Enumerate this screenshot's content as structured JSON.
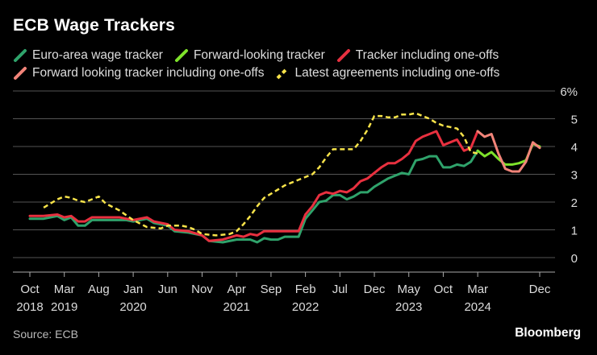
{
  "title": "ECB Wage Trackers",
  "source": "Source: ECB",
  "brand": "Bloomberg",
  "colors": {
    "background": "#000000",
    "grid": "#555555",
    "text": "#dddddd"
  },
  "chart_data": {
    "type": "line",
    "title": "ECB Wage Trackers",
    "xlabel": "",
    "ylabel": "",
    "y_unit": "%",
    "ylim": [
      0,
      6
    ],
    "yticks": [
      0,
      1,
      2,
      3,
      4,
      5,
      6
    ],
    "ytick_labels": [
      "0",
      "1",
      "2",
      "3",
      "4",
      "5",
      "6%"
    ],
    "xlim": [
      "2018-10",
      "2024-12"
    ],
    "xticks": [
      {
        "date": "2018-10",
        "label": "Oct",
        "year": "2018"
      },
      {
        "date": "2019-03",
        "label": "Mar",
        "year": "2019"
      },
      {
        "date": "2019-08",
        "label": "Aug",
        "year": ""
      },
      {
        "date": "2020-01",
        "label": "Jan",
        "year": "2020"
      },
      {
        "date": "2020-06",
        "label": "Jun",
        "year": ""
      },
      {
        "date": "2020-11",
        "label": "Nov",
        "year": ""
      },
      {
        "date": "2021-04",
        "label": "Apr",
        "year": "2021"
      },
      {
        "date": "2021-09",
        "label": "Sep",
        "year": ""
      },
      {
        "date": "2022-02",
        "label": "Feb",
        "year": "2022"
      },
      {
        "date": "2022-07",
        "label": "Jul",
        "year": ""
      },
      {
        "date": "2022-12",
        "label": "Dec",
        "year": ""
      },
      {
        "date": "2023-05",
        "label": "May",
        "year": "2023"
      },
      {
        "date": "2023-10",
        "label": "Oct",
        "year": ""
      },
      {
        "date": "2024-03",
        "label": "Mar",
        "year": "2024"
      },
      {
        "date": "2024-12",
        "label": "Dec",
        "year": ""
      }
    ],
    "grid": "horizontal",
    "legend_position": "top",
    "series": [
      {
        "name": "Euro-area wage tracker",
        "color": "#2fa36b",
        "dash": false,
        "points": [
          [
            "2018-10",
            1.4
          ],
          [
            "2018-12",
            1.4
          ],
          [
            "2019-02",
            1.5
          ],
          [
            "2019-03",
            1.35
          ],
          [
            "2019-04",
            1.45
          ],
          [
            "2019-05",
            1.15
          ],
          [
            "2019-06",
            1.15
          ],
          [
            "2019-07",
            1.35
          ],
          [
            "2019-09",
            1.35
          ],
          [
            "2019-11",
            1.35
          ],
          [
            "2019-12",
            1.35
          ],
          [
            "2020-01",
            1.3
          ],
          [
            "2020-03",
            1.4
          ],
          [
            "2020-04",
            1.25
          ],
          [
            "2020-06",
            1.15
          ],
          [
            "2020-07",
            0.95
          ],
          [
            "2020-09",
            0.9
          ],
          [
            "2020-11",
            0.8
          ],
          [
            "2020-12",
            0.6
          ],
          [
            "2021-02",
            0.55
          ],
          [
            "2021-04",
            0.65
          ],
          [
            "2021-05",
            0.65
          ],
          [
            "2021-06",
            0.65
          ],
          [
            "2021-07",
            0.55
          ],
          [
            "2021-08",
            0.7
          ],
          [
            "2021-09",
            0.65
          ],
          [
            "2021-10",
            0.65
          ],
          [
            "2021-11",
            0.75
          ],
          [
            "2022-01",
            0.75
          ],
          [
            "2022-02",
            1.4
          ],
          [
            "2022-03",
            1.7
          ],
          [
            "2022-04",
            2.0
          ],
          [
            "2022-05",
            2.05
          ],
          [
            "2022-06",
            2.25
          ],
          [
            "2022-07",
            2.25
          ],
          [
            "2022-08",
            2.1
          ],
          [
            "2022-09",
            2.2
          ],
          [
            "2022-10",
            2.35
          ],
          [
            "2022-11",
            2.35
          ],
          [
            "2022-12",
            2.55
          ],
          [
            "2023-01",
            2.7
          ],
          [
            "2023-02",
            2.85
          ],
          [
            "2023-03",
            2.95
          ],
          [
            "2023-04",
            3.05
          ],
          [
            "2023-05",
            3.0
          ],
          [
            "2023-06",
            3.5
          ],
          [
            "2023-07",
            3.55
          ],
          [
            "2023-08",
            3.65
          ],
          [
            "2023-09",
            3.65
          ],
          [
            "2023-10",
            3.25
          ],
          [
            "2023-11",
            3.25
          ],
          [
            "2023-12",
            3.35
          ],
          [
            "2024-01",
            3.3
          ],
          [
            "2024-02",
            3.45
          ],
          [
            "2024-03",
            3.85
          ]
        ]
      },
      {
        "name": "Forward-looking tracker",
        "color": "#7ee22b",
        "dash": false,
        "points": [
          [
            "2024-03",
            3.85
          ],
          [
            "2024-04",
            3.65
          ],
          [
            "2024-05",
            3.8
          ],
          [
            "2024-06",
            3.55
          ],
          [
            "2024-07",
            3.35
          ],
          [
            "2024-08",
            3.35
          ],
          [
            "2024-09",
            3.4
          ],
          [
            "2024-10",
            3.5
          ],
          [
            "2024-11",
            4.1
          ],
          [
            "2024-12",
            4.0
          ]
        ]
      },
      {
        "name": "Tracker including one-offs",
        "color": "#e8303f",
        "dash": false,
        "points": [
          [
            "2018-10",
            1.5
          ],
          [
            "2018-12",
            1.5
          ],
          [
            "2019-02",
            1.55
          ],
          [
            "2019-03",
            1.45
          ],
          [
            "2019-04",
            1.5
          ],
          [
            "2019-05",
            1.3
          ],
          [
            "2019-06",
            1.3
          ],
          [
            "2019-07",
            1.45
          ],
          [
            "2019-09",
            1.45
          ],
          [
            "2019-11",
            1.45
          ],
          [
            "2019-12",
            1.4
          ],
          [
            "2020-01",
            1.35
          ],
          [
            "2020-03",
            1.45
          ],
          [
            "2020-04",
            1.3
          ],
          [
            "2020-06",
            1.2
          ],
          [
            "2020-07",
            1.0
          ],
          [
            "2020-09",
            0.95
          ],
          [
            "2020-11",
            0.8
          ],
          [
            "2020-12",
            0.6
          ],
          [
            "2021-02",
            0.65
          ],
          [
            "2021-04",
            0.8
          ],
          [
            "2021-05",
            0.75
          ],
          [
            "2021-06",
            0.85
          ],
          [
            "2021-07",
            0.8
          ],
          [
            "2021-08",
            0.95
          ],
          [
            "2021-10",
            0.95
          ],
          [
            "2021-12",
            0.95
          ],
          [
            "2022-01",
            0.95
          ],
          [
            "2022-02",
            1.55
          ],
          [
            "2022-03",
            1.85
          ],
          [
            "2022-04",
            2.25
          ],
          [
            "2022-05",
            2.35
          ],
          [
            "2022-06",
            2.3
          ],
          [
            "2022-07",
            2.4
          ],
          [
            "2022-08",
            2.35
          ],
          [
            "2022-09",
            2.5
          ],
          [
            "2022-10",
            2.75
          ],
          [
            "2022-11",
            2.85
          ],
          [
            "2022-12",
            3.05
          ],
          [
            "2023-01",
            3.25
          ],
          [
            "2023-02",
            3.4
          ],
          [
            "2023-03",
            3.4
          ],
          [
            "2023-04",
            3.55
          ],
          [
            "2023-05",
            3.75
          ],
          [
            "2023-06",
            4.2
          ],
          [
            "2023-07",
            4.35
          ],
          [
            "2023-08",
            4.45
          ],
          [
            "2023-09",
            4.55
          ],
          [
            "2023-10",
            4.05
          ],
          [
            "2023-11",
            4.15
          ],
          [
            "2023-12",
            4.25
          ],
          [
            "2024-01",
            3.85
          ],
          [
            "2024-02",
            3.95
          ],
          [
            "2024-03",
            4.55
          ]
        ]
      },
      {
        "name": "Forward looking tracker including one-offs",
        "color": "#f28479",
        "dash": false,
        "points": [
          [
            "2024-03",
            4.55
          ],
          [
            "2024-04",
            4.35
          ],
          [
            "2024-05",
            4.45
          ],
          [
            "2024-06",
            3.75
          ],
          [
            "2024-07",
            3.2
          ],
          [
            "2024-08",
            3.1
          ],
          [
            "2024-09",
            3.1
          ],
          [
            "2024-10",
            3.45
          ],
          [
            "2024-11",
            4.15
          ],
          [
            "2024-12",
            3.95
          ]
        ]
      },
      {
        "name": "Latest agreements including one-offs",
        "color": "#f7e34a",
        "dash": true,
        "points": [
          [
            "2018-12",
            1.8
          ],
          [
            "2019-02",
            2.1
          ],
          [
            "2019-03",
            2.2
          ],
          [
            "2019-04",
            2.15
          ],
          [
            "2019-05",
            2.05
          ],
          [
            "2019-06",
            2.0
          ],
          [
            "2019-07",
            2.1
          ],
          [
            "2019-08",
            2.2
          ],
          [
            "2019-09",
            1.95
          ],
          [
            "2019-11",
            1.7
          ],
          [
            "2020-01",
            1.35
          ],
          [
            "2020-03",
            1.1
          ],
          [
            "2020-05",
            1.05
          ],
          [
            "2020-06",
            1.15
          ],
          [
            "2020-08",
            1.15
          ],
          [
            "2020-09",
            1.1
          ],
          [
            "2020-10",
            1.0
          ],
          [
            "2020-11",
            0.85
          ],
          [
            "2021-01",
            0.8
          ],
          [
            "2021-03",
            0.85
          ],
          [
            "2021-04",
            0.95
          ],
          [
            "2021-05",
            1.2
          ],
          [
            "2021-06",
            1.5
          ],
          [
            "2021-07",
            1.85
          ],
          [
            "2021-08",
            2.15
          ],
          [
            "2021-09",
            2.3
          ],
          [
            "2021-10",
            2.45
          ],
          [
            "2021-11",
            2.6
          ],
          [
            "2021-12",
            2.7
          ],
          [
            "2022-01",
            2.8
          ],
          [
            "2022-02",
            2.9
          ],
          [
            "2022-03",
            3.0
          ],
          [
            "2022-04",
            3.25
          ],
          [
            "2022-05",
            3.6
          ],
          [
            "2022-06",
            3.9
          ],
          [
            "2022-07",
            3.9
          ],
          [
            "2022-08",
            3.9
          ],
          [
            "2022-09",
            3.9
          ],
          [
            "2022-10",
            4.2
          ],
          [
            "2022-11",
            4.6
          ],
          [
            "2022-12",
            5.1
          ],
          [
            "2023-01",
            5.1
          ],
          [
            "2023-02",
            5.05
          ],
          [
            "2023-03",
            5.05
          ],
          [
            "2023-04",
            5.15
          ],
          [
            "2023-05",
            5.15
          ],
          [
            "2023-06",
            5.2
          ],
          [
            "2023-07",
            5.1
          ],
          [
            "2023-08",
            5.0
          ],
          [
            "2023-09",
            4.85
          ],
          [
            "2023-10",
            4.75
          ],
          [
            "2023-11",
            4.7
          ],
          [
            "2023-12",
            4.65
          ],
          [
            "2024-01",
            4.35
          ],
          [
            "2024-02",
            3.8
          ],
          [
            "2024-03",
            3.75
          ]
        ]
      }
    ]
  }
}
